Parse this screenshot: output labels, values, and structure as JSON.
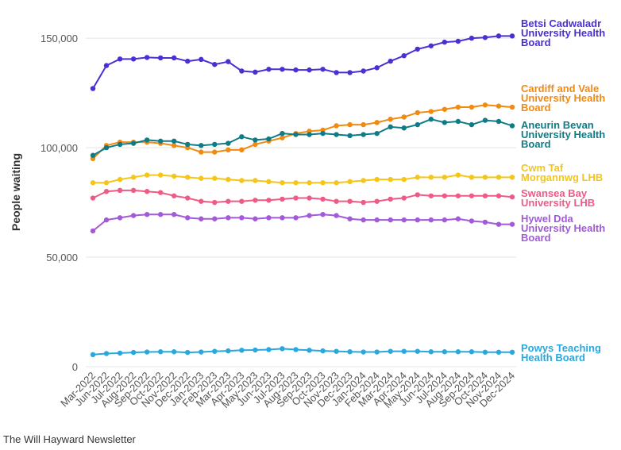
{
  "chart_data": {
    "type": "line",
    "y_label": "People waiting",
    "source": "The Will Hayward Newsletter",
    "categories": [
      "Mar-2022",
      "Jun-2022",
      "Jul-2022",
      "Aug-2022",
      "Sep-2022",
      "Oct-2022",
      "Nov-2022",
      "Dec-2022",
      "Jan-2023",
      "Feb-2023",
      "Mar-2023",
      "Apr-2023",
      "May-2023",
      "Jun-2023",
      "Jul-2023",
      "Aug-2023",
      "Sep-2023",
      "Oct-2023",
      "Nov-2023",
      "Dec-2023",
      "Jan-2024",
      "Feb-2024",
      "Mar-2024",
      "Apr-2024",
      "May-2024",
      "Jun-2024",
      "Jul-2024",
      "Aug-2024",
      "Sep-2024",
      "Oct-2024",
      "Nov-2024",
      "Dec-2024"
    ],
    "ylim": [
      0,
      162000
    ],
    "yticks": [
      0,
      {
        "value": 50000,
        "label": "50,000"
      },
      {
        "value": 100000,
        "label": "100,000"
      },
      {
        "value": 150000,
        "label": "150,000"
      }
    ],
    "grid": true,
    "series": [
      {
        "name": "Betsi Cadwaladr University Health Board",
        "color": "#4a2fd4",
        "values": [
          127000,
          137500,
          140500,
          140500,
          141200,
          141000,
          141000,
          139500,
          140300,
          138000,
          139300,
          135000,
          134500,
          135800,
          135800,
          135500,
          135500,
          135800,
          134300,
          134300,
          135000,
          136500,
          139500,
          142000,
          145000,
          146500,
          148200,
          148600,
          150000,
          150300,
          151000,
          151000
        ]
      },
      {
        "name": "Cardiff and Vale University Health Board",
        "color": "#f28a10",
        "values": [
          95000,
          101000,
          102500,
          102500,
          102500,
          102000,
          101000,
          100000,
          98000,
          98000,
          99000,
          99000,
          101500,
          103000,
          104500,
          106500,
          107500,
          108000,
          110000,
          110500,
          110500,
          111500,
          113000,
          114000,
          116000,
          116500,
          117500,
          118500,
          118500,
          119500,
          119000,
          118500
        ]
      },
      {
        "name": "Aneurin Bevan University Health Board",
        "color": "#0e7c86",
        "values": [
          96500,
          100000,
          101500,
          102000,
          103500,
          103000,
          103000,
          101500,
          101000,
          101500,
          102000,
          105000,
          103500,
          104000,
          106500,
          106000,
          106000,
          106500,
          106000,
          105500,
          106000,
          106500,
          109500,
          109000,
          110500,
          113000,
          111500,
          112000,
          110500,
          112500,
          112000,
          110000
        ]
      },
      {
        "name": "Cwm Taf Morgannwg LHB",
        "color": "#f5c518",
        "values": [
          84000,
          84000,
          85500,
          86500,
          87500,
          87500,
          87000,
          86500,
          86000,
          86000,
          85500,
          85000,
          85000,
          84500,
          84000,
          84000,
          84000,
          84000,
          84000,
          84500,
          85000,
          85500,
          85500,
          85500,
          86500,
          86500,
          86500,
          87500,
          86500,
          86500,
          86500,
          86500
        ]
      },
      {
        "name": "Swansea Bay University LHB",
        "color": "#ef5a86",
        "values": [
          77000,
          80000,
          80500,
          80500,
          80000,
          79500,
          78000,
          77000,
          75500,
          75000,
          75500,
          75500,
          76000,
          76000,
          76500,
          77000,
          77000,
          76500,
          75500,
          75500,
          75000,
          75500,
          76500,
          77000,
          78500,
          78000,
          78000,
          78000,
          78000,
          78000,
          78000,
          77500
        ]
      },
      {
        "name": "Hywel Dda University Health Board",
        "color": "#a25ad9",
        "values": [
          62000,
          67000,
          68000,
          69000,
          69500,
          69500,
          69500,
          68000,
          67500,
          67500,
          68000,
          68000,
          67500,
          68000,
          68000,
          68000,
          69000,
          69500,
          69000,
          67500,
          67000,
          67000,
          67000,
          67000,
          67000,
          67000,
          67000,
          67500,
          66500,
          66000,
          65000,
          65000
        ]
      },
      {
        "name": "Powys Teaching Health Board",
        "color": "#29a8dd",
        "values": [
          5500,
          6000,
          6200,
          6500,
          6700,
          6800,
          6800,
          6500,
          6700,
          7000,
          7200,
          7500,
          7600,
          7800,
          8200,
          7800,
          7500,
          7200,
          7000,
          6800,
          6700,
          6700,
          7000,
          7000,
          7000,
          6800,
          6800,
          6800,
          6800,
          6600,
          6600,
          6600
        ]
      }
    ]
  }
}
